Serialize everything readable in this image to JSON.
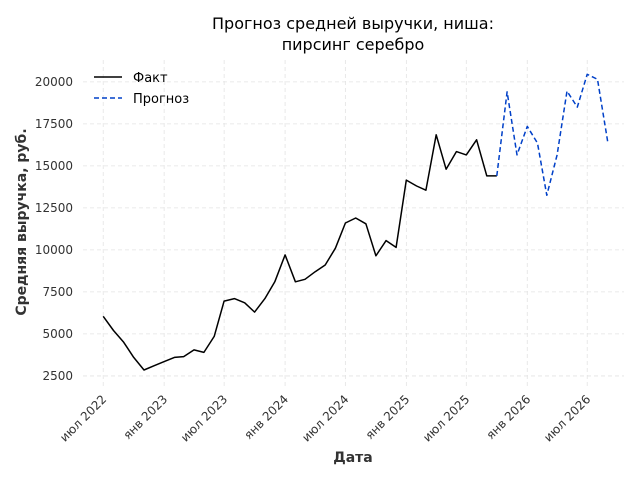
{
  "chart_data": {
    "type": "line",
    "title_line1": "Прогноз средней выручки, ниша:",
    "title_line2": "пирсинг серебро",
    "xlabel": "Дата",
    "ylabel": "Средняя выручка, руб.",
    "ylim": [
      1900,
      21300
    ],
    "xlim": [
      "2022-05-01",
      "2026-10-20"
    ],
    "grid": true,
    "legend_position": "top-left",
    "y_ticks": [
      2500,
      5000,
      7500,
      10000,
      12500,
      15000,
      17500,
      20000
    ],
    "x_ticks": [
      {
        "date": "2022-07-01",
        "label": "июл 2022"
      },
      {
        "date": "2023-01-01",
        "label": "янв 2023"
      },
      {
        "date": "2023-07-01",
        "label": "июл 2023"
      },
      {
        "date": "2024-01-01",
        "label": "янв 2024"
      },
      {
        "date": "2024-07-01",
        "label": "июл 2024"
      },
      {
        "date": "2025-01-01",
        "label": "янв 2025"
      },
      {
        "date": "2025-07-01",
        "label": "июл 2025"
      },
      {
        "date": "2026-01-01",
        "label": "янв 2026"
      },
      {
        "date": "2026-07-01",
        "label": "июл 2026"
      }
    ],
    "series": [
      {
        "name": "Факт",
        "color": "#000000",
        "dash": false,
        "points": [
          [
            "2022-07-01",
            6050
          ],
          [
            "2022-08-01",
            5200
          ],
          [
            "2022-09-01",
            4500
          ],
          [
            "2022-10-01",
            3600
          ],
          [
            "2022-11-01",
            2850
          ],
          [
            "2022-12-01",
            3100
          ],
          [
            "2023-01-01",
            3350
          ],
          [
            "2023-02-01",
            3600
          ],
          [
            "2023-03-01",
            3650
          ],
          [
            "2023-04-01",
            4050
          ],
          [
            "2023-05-01",
            3900
          ],
          [
            "2023-06-01",
            4850
          ],
          [
            "2023-07-01",
            6950
          ],
          [
            "2023-08-01",
            7100
          ],
          [
            "2023-09-01",
            6850
          ],
          [
            "2023-10-01",
            6300
          ],
          [
            "2023-11-01",
            7100
          ],
          [
            "2023-12-01",
            8100
          ],
          [
            "2024-01-01",
            9700
          ],
          [
            "2024-02-01",
            8100
          ],
          [
            "2024-03-01",
            8250
          ],
          [
            "2024-04-01",
            8700
          ],
          [
            "2024-05-01",
            9100
          ],
          [
            "2024-06-01",
            10100
          ],
          [
            "2024-07-01",
            11600
          ],
          [
            "2024-08-01",
            11900
          ],
          [
            "2024-09-01",
            11550
          ],
          [
            "2024-10-01",
            9650
          ],
          [
            "2024-11-01",
            10550
          ],
          [
            "2024-12-01",
            10150
          ],
          [
            "2025-01-01",
            14150
          ],
          [
            "2025-02-01",
            13800
          ],
          [
            "2025-03-01",
            13550
          ],
          [
            "2025-04-01",
            16850
          ],
          [
            "2025-05-01",
            14800
          ],
          [
            "2025-06-01",
            15850
          ],
          [
            "2025-07-01",
            15650
          ],
          [
            "2025-08-01",
            16550
          ],
          [
            "2025-09-01",
            14400
          ],
          [
            "2025-10-01",
            14400
          ]
        ]
      },
      {
        "name": "Прогноз",
        "color": "#0040c8",
        "dash": true,
        "points": [
          [
            "2025-10-01",
            14400
          ],
          [
            "2025-11-01",
            19400
          ],
          [
            "2025-12-01",
            15650
          ],
          [
            "2026-01-01",
            17350
          ],
          [
            "2026-02-01",
            16350
          ],
          [
            "2026-03-01",
            13250
          ],
          [
            "2026-04-01",
            15650
          ],
          [
            "2026-05-01",
            19450
          ],
          [
            "2026-06-01",
            18500
          ],
          [
            "2026-07-01",
            20450
          ],
          [
            "2026-08-01",
            20150
          ],
          [
            "2026-09-01",
            16400
          ]
        ]
      }
    ]
  }
}
